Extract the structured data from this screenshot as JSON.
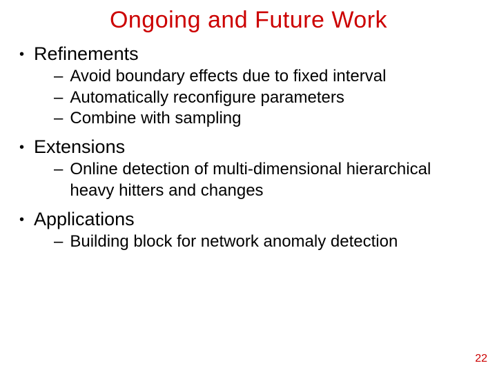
{
  "colors": {
    "title": "#cc0000",
    "body": "#000000",
    "pagenum": "#cc0000",
    "background": "#ffffff"
  },
  "typography": {
    "font_family": "Comic Sans MS",
    "title_fontsize": 34,
    "level1_fontsize": 27,
    "level2_fontsize": 24,
    "pagenum_fontsize": 16
  },
  "title": "Ongoing and Future Work",
  "sections": [
    {
      "heading": "Refinements",
      "items": [
        "Avoid boundary effects due to fixed interval",
        "Automatically reconfigure parameters",
        "Combine with sampling"
      ]
    },
    {
      "heading": "Extensions",
      "items": [
        "Online detection of multi-dimensional hierarchical heavy hitters and changes"
      ]
    },
    {
      "heading": "Applications",
      "items": [
        "Building block for network anomaly detection"
      ]
    }
  ],
  "page_number": "22"
}
